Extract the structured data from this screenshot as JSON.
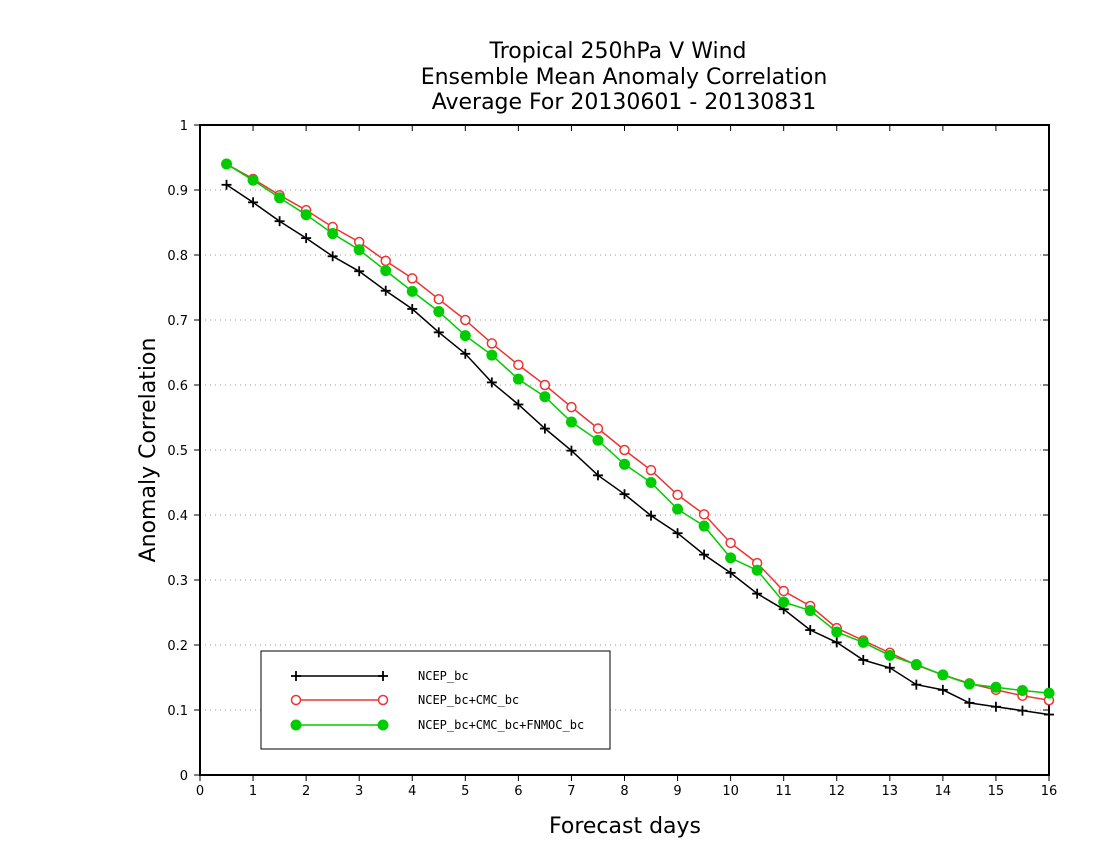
{
  "chart_data": {
    "type": "line",
    "title": [
      "Tropical 250hPa V Wind",
      "Ensemble Mean Anomaly Correlation",
      "Average For 20130601 - 20130831"
    ],
    "xlabel": "Forecast days",
    "ylabel": "Anomaly Correlation",
    "xlim": [
      0,
      16
    ],
    "ylim": [
      0,
      1
    ],
    "xticks": [
      0,
      1,
      2,
      3,
      4,
      5,
      6,
      7,
      8,
      9,
      10,
      11,
      12,
      13,
      14,
      15,
      16
    ],
    "yticks": [
      0,
      0.1,
      0.2,
      0.3,
      0.4,
      0.5,
      0.6,
      0.7,
      0.8,
      0.9,
      1
    ],
    "ytick_labels": [
      "0",
      "0.1",
      "0.2",
      "0.3",
      "0.4",
      "0.5",
      "0.6",
      "0.7",
      "0.8",
      "0.9",
      "1"
    ],
    "grid": "horizontal dotted",
    "legend_position": "bottom-left",
    "x": [
      0.5,
      1,
      1.5,
      2,
      2.5,
      3,
      3.5,
      4,
      4.5,
      5,
      5.5,
      6,
      6.5,
      7,
      7.5,
      8,
      8.5,
      9,
      9.5,
      10,
      10.5,
      11,
      11.5,
      12,
      12.5,
      13,
      13.5,
      14,
      14.5,
      15,
      15.5,
      16
    ],
    "series": [
      {
        "name": "NCEP_bc",
        "color": "#000000",
        "marker": "plus",
        "values": [
          0.908,
          0.881,
          0.852,
          0.826,
          0.798,
          0.775,
          0.745,
          0.717,
          0.681,
          0.648,
          0.604,
          0.57,
          0.533,
          0.499,
          0.461,
          0.432,
          0.399,
          0.372,
          0.339,
          0.311,
          0.279,
          0.255,
          0.223,
          0.204,
          0.177,
          0.165,
          0.139,
          0.131,
          0.111,
          0.105,
          0.099,
          0.093
        ]
      },
      {
        "name": "NCEP_bc+CMC_bc",
        "color": "#ee3333",
        "marker": "open-circle",
        "values": [
          0.94,
          0.917,
          0.892,
          0.869,
          0.843,
          0.82,
          0.791,
          0.764,
          0.732,
          0.7,
          0.664,
          0.631,
          0.6,
          0.566,
          0.533,
          0.5,
          0.469,
          0.431,
          0.401,
          0.357,
          0.326,
          0.283,
          0.26,
          0.226,
          0.207,
          0.188,
          0.169,
          0.154,
          0.141,
          0.131,
          0.122,
          0.115
        ]
      },
      {
        "name": "NCEP_bc+CMC_bc+FNMOC_bc",
        "color": "#00cc00",
        "marker": "filled-circle",
        "values": [
          0.94,
          0.915,
          0.888,
          0.862,
          0.833,
          0.808,
          0.776,
          0.744,
          0.713,
          0.676,
          0.646,
          0.609,
          0.582,
          0.543,
          0.515,
          0.478,
          0.45,
          0.409,
          0.383,
          0.334,
          0.315,
          0.266,
          0.253,
          0.22,
          0.204,
          0.184,
          0.17,
          0.154,
          0.14,
          0.135,
          0.13,
          0.126
        ]
      }
    ]
  }
}
